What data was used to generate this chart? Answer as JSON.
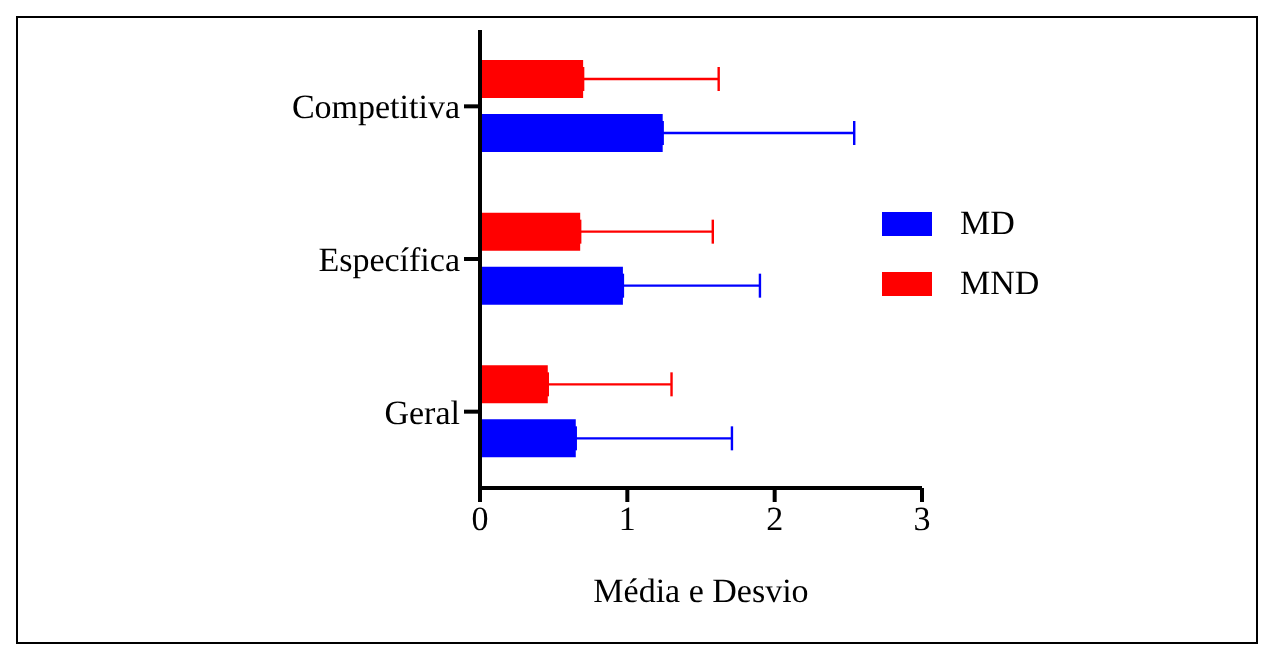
{
  "chart_data": {
    "type": "bar",
    "orientation": "horizontal",
    "xlabel": "Média e Desvio",
    "categories": [
      "Competitiva",
      "Específica",
      "Geral"
    ],
    "series": [
      {
        "name": "MD",
        "color": "#0000ff",
        "values": [
          1.24,
          0.97,
          0.65
        ],
        "errors": [
          1.3,
          0.93,
          1.06
        ]
      },
      {
        "name": "MND",
        "color": "#ff0000",
        "values": [
          0.7,
          0.68,
          0.46
        ],
        "errors": [
          0.92,
          0.9,
          0.84
        ]
      }
    ],
    "xlim": [
      0,
      3
    ],
    "xticks": [
      0,
      1,
      2,
      3
    ],
    "legend": "right",
    "grid": false
  }
}
